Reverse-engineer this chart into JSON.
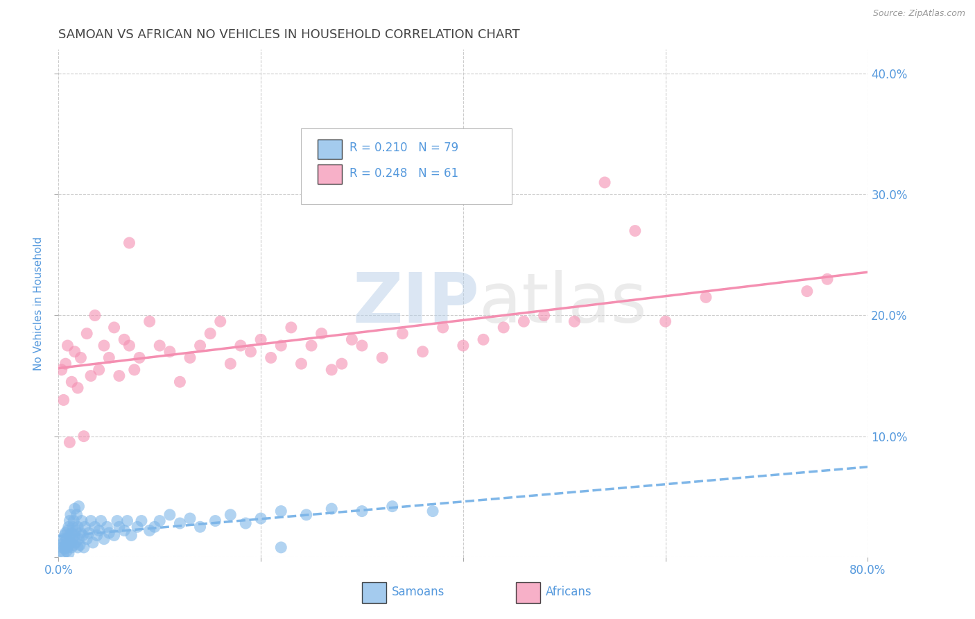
{
  "title": "SAMOAN VS AFRICAN NO VEHICLES IN HOUSEHOLD CORRELATION CHART",
  "source": "Source: ZipAtlas.com",
  "ylabel": "No Vehicles in Household",
  "xlim": [
    0.0,
    0.8
  ],
  "ylim": [
    0.0,
    0.42
  ],
  "xticks": [
    0.0,
    0.2,
    0.4,
    0.6,
    0.8
  ],
  "xticklabels_show": [
    "0.0%",
    "",
    "",
    "",
    "80.0%"
  ],
  "yticks": [
    0.0,
    0.1,
    0.2,
    0.3,
    0.4
  ],
  "yticklabels_right": [
    "",
    "10.0%",
    "20.0%",
    "30.0%",
    "40.0%"
  ],
  "samoan_color": "#7EB6E8",
  "african_color": "#F48FB1",
  "samoan_R": 0.21,
  "samoan_N": 79,
  "african_R": 0.248,
  "african_N": 61,
  "legend_label_samoan": "Samoans",
  "legend_label_african": "Africans",
  "watermark_zip": "ZIP",
  "watermark_atlas": "atlas",
  "background_color": "#ffffff",
  "grid_color": "#cccccc",
  "title_color": "#444444",
  "axis_label_color": "#5599dd",
  "tick_label_color": "#5599dd",
  "samoan_x": [
    0.002,
    0.003,
    0.004,
    0.004,
    0.005,
    0.005,
    0.006,
    0.006,
    0.007,
    0.007,
    0.008,
    0.008,
    0.009,
    0.009,
    0.01,
    0.01,
    0.01,
    0.011,
    0.011,
    0.012,
    0.012,
    0.013,
    0.013,
    0.014,
    0.014,
    0.015,
    0.015,
    0.016,
    0.016,
    0.017,
    0.017,
    0.018,
    0.019,
    0.019,
    0.02,
    0.02,
    0.021,
    0.022,
    0.023,
    0.024,
    0.025,
    0.026,
    0.028,
    0.03,
    0.032,
    0.034,
    0.036,
    0.038,
    0.04,
    0.042,
    0.045,
    0.048,
    0.05,
    0.055,
    0.058,
    0.06,
    0.065,
    0.068,
    0.072,
    0.078,
    0.082,
    0.09,
    0.095,
    0.1,
    0.11,
    0.12,
    0.13,
    0.14,
    0.155,
    0.17,
    0.185,
    0.2,
    0.22,
    0.245,
    0.27,
    0.3,
    0.33,
    0.37,
    0.22
  ],
  "samoan_y": [
    0.005,
    0.01,
    0.008,
    0.015,
    0.003,
    0.012,
    0.007,
    0.018,
    0.01,
    0.02,
    0.005,
    0.015,
    0.008,
    0.022,
    0.01,
    0.025,
    0.003,
    0.018,
    0.03,
    0.012,
    0.035,
    0.008,
    0.02,
    0.015,
    0.025,
    0.01,
    0.03,
    0.018,
    0.04,
    0.022,
    0.012,
    0.035,
    0.008,
    0.025,
    0.015,
    0.042,
    0.01,
    0.02,
    0.03,
    0.018,
    0.008,
    0.025,
    0.015,
    0.02,
    0.03,
    0.012,
    0.025,
    0.018,
    0.022,
    0.03,
    0.015,
    0.025,
    0.02,
    0.018,
    0.03,
    0.025,
    0.022,
    0.03,
    0.018,
    0.025,
    0.03,
    0.022,
    0.025,
    0.03,
    0.035,
    0.028,
    0.032,
    0.025,
    0.03,
    0.035,
    0.028,
    0.032,
    0.038,
    0.035,
    0.04,
    0.038,
    0.042,
    0.038,
    0.008
  ],
  "african_x": [
    0.003,
    0.005,
    0.007,
    0.009,
    0.011,
    0.013,
    0.016,
    0.019,
    0.022,
    0.025,
    0.028,
    0.032,
    0.036,
    0.04,
    0.045,
    0.05,
    0.055,
    0.06,
    0.065,
    0.07,
    0.075,
    0.08,
    0.09,
    0.1,
    0.11,
    0.12,
    0.13,
    0.14,
    0.15,
    0.16,
    0.17,
    0.18,
    0.19,
    0.2,
    0.21,
    0.22,
    0.23,
    0.24,
    0.25,
    0.26,
    0.27,
    0.28,
    0.29,
    0.3,
    0.32,
    0.34,
    0.36,
    0.38,
    0.4,
    0.42,
    0.44,
    0.46,
    0.48,
    0.51,
    0.54,
    0.57,
    0.6,
    0.64,
    0.74,
    0.76,
    0.07
  ],
  "african_y": [
    0.155,
    0.13,
    0.16,
    0.175,
    0.095,
    0.145,
    0.17,
    0.14,
    0.165,
    0.1,
    0.185,
    0.15,
    0.2,
    0.155,
    0.175,
    0.165,
    0.19,
    0.15,
    0.18,
    0.26,
    0.155,
    0.165,
    0.195,
    0.175,
    0.17,
    0.145,
    0.165,
    0.175,
    0.185,
    0.195,
    0.16,
    0.175,
    0.17,
    0.18,
    0.165,
    0.175,
    0.19,
    0.16,
    0.175,
    0.185,
    0.155,
    0.16,
    0.18,
    0.175,
    0.165,
    0.185,
    0.17,
    0.19,
    0.175,
    0.18,
    0.19,
    0.195,
    0.2,
    0.195,
    0.31,
    0.27,
    0.195,
    0.215,
    0.22,
    0.23,
    0.175
  ]
}
